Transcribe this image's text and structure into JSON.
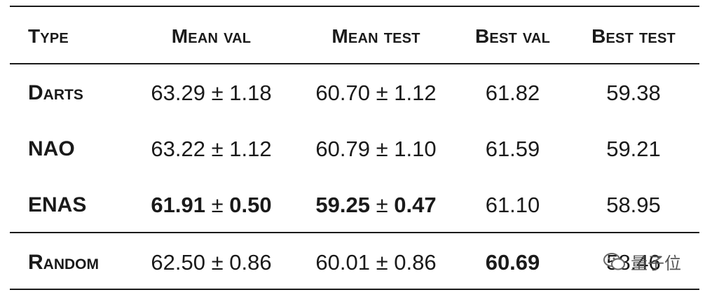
{
  "headers": [
    "Type",
    "Mean val",
    "Mean test",
    "Best val",
    "Best test"
  ],
  "rows": [
    {
      "type": "Darts",
      "mean_val": "63.29",
      "mean_val_pm": "1.18",
      "mean_test": "60.70",
      "mean_test_pm": "1.12",
      "best_val": "61.82",
      "best_test": "59.38"
    },
    {
      "type": "NAO",
      "mean_val": "63.22",
      "mean_val_pm": "1.12",
      "mean_test": "60.79",
      "mean_test_pm": "1.10",
      "best_val": "61.59",
      "best_test": "59.21"
    },
    {
      "type": "ENAS",
      "mean_val": "61.91",
      "mean_val_pm": "0.50",
      "mean_test": "59.25",
      "mean_test_pm": "0.47",
      "best_val": "61.10",
      "best_test": "58.95"
    },
    {
      "type": "Random",
      "mean_val": "62.50",
      "mean_val_pm": "0.86",
      "mean_test": "60.01",
      "mean_test_pm": "0.86",
      "best_val": "60.69",
      "best_test": "58.46"
    }
  ],
  "pm_symbol": "±",
  "watermark": {
    "text": "量子位",
    "icon": "wechat-icon"
  }
}
